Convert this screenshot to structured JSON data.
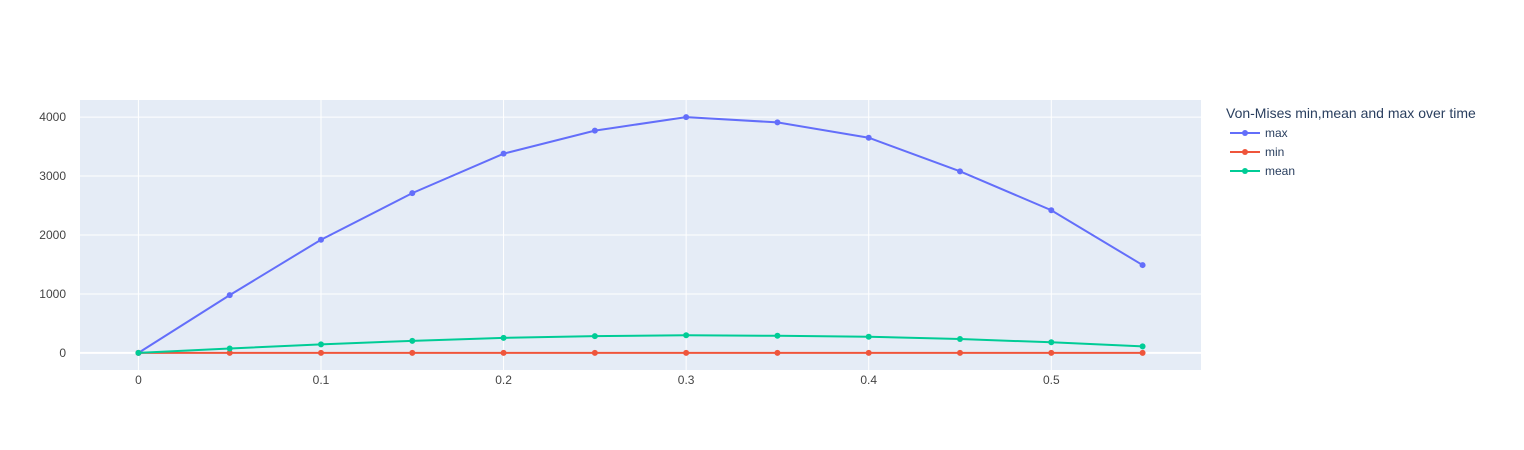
{
  "chart_data": {
    "type": "line",
    "title": "",
    "xlabel": "",
    "ylabel": "",
    "xlim": [
      -0.032,
      0.582
    ],
    "ylim": [
      -290,
      4290
    ],
    "x_ticks": [
      0,
      0.1,
      0.2,
      0.3,
      0.4,
      0.5
    ],
    "x_tick_labels": [
      "0",
      "0.1",
      "0.2",
      "0.3",
      "0.4",
      "0.5"
    ],
    "y_ticks": [
      0,
      1000,
      2000,
      3000,
      4000
    ],
    "y_tick_labels": [
      "0",
      "1000",
      "2000",
      "3000",
      "4000"
    ],
    "grid": true,
    "legend": {
      "title": "Von-Mises min,mean and max over time",
      "placement": "top-right outside plot"
    },
    "x": [
      0,
      0.05,
      0.1,
      0.15,
      0.2,
      0.25,
      0.3,
      0.35,
      0.4,
      0.45,
      0.5,
      0.55
    ],
    "series": [
      {
        "name": "max",
        "color": "#636efa",
        "values": [
          0,
          980,
          1920,
          2710,
          3380,
          3770,
          4000,
          3910,
          3650,
          3080,
          2420,
          1490
        ]
      },
      {
        "name": "min",
        "color": "#ef553b",
        "values": [
          0,
          0,
          0,
          0,
          0,
          0,
          0,
          0,
          0,
          0,
          0,
          0
        ]
      },
      {
        "name": "mean",
        "color": "#00cc96",
        "values": [
          0,
          75,
          145,
          205,
          255,
          285,
          300,
          290,
          275,
          235,
          180,
          110
        ]
      }
    ]
  }
}
